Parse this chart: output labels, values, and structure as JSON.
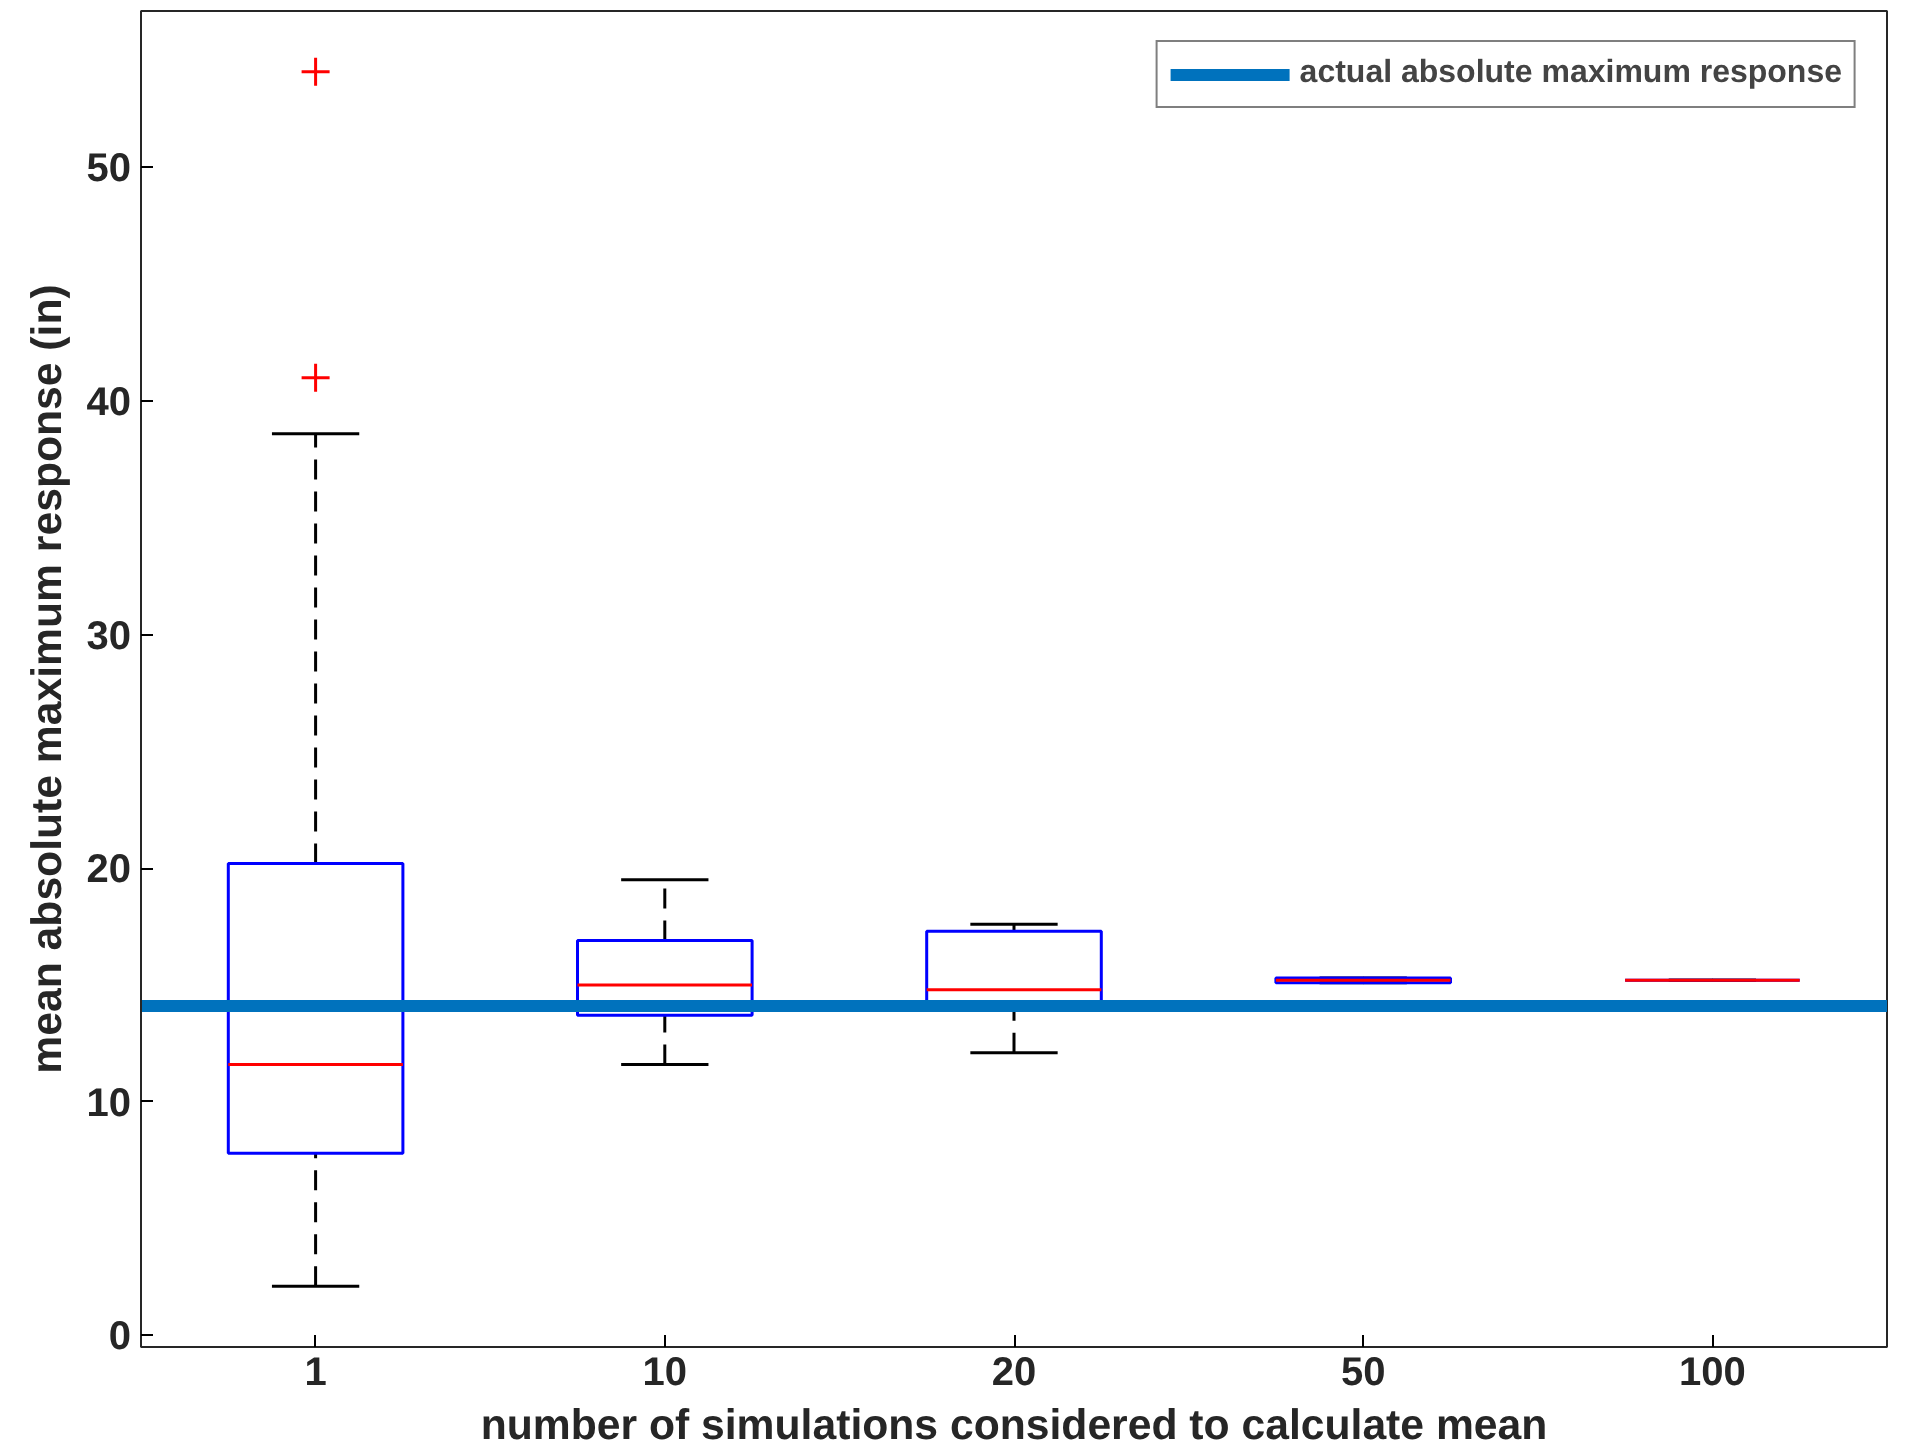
{
  "chart_data": {
    "type": "box",
    "xlabel": "number of simulations considered to calculate mean",
    "ylabel": "mean absolute maximum response (in)",
    "categories": [
      "1",
      "10",
      "20",
      "50",
      "100"
    ],
    "boxes": [
      {
        "low": 2.1,
        "q1": 7.8,
        "median": 11.6,
        "q3": 20.2,
        "high": 38.6,
        "outliers": [
          41.0,
          54.1
        ]
      },
      {
        "low": 11.6,
        "q1": 13.7,
        "median": 15.0,
        "q3": 16.9,
        "high": 19.5
      },
      {
        "low": 12.1,
        "q1": 14.0,
        "median": 14.8,
        "q3": 17.3,
        "high": 17.6
      },
      {
        "low": 15.1,
        "q1": 15.1,
        "median": 15.2,
        "q3": 15.3,
        "high": 15.3
      },
      {
        "low": 15.2,
        "q1": 15.2,
        "median": 15.2,
        "q3": 15.2,
        "high": 15.2
      }
    ],
    "ylim": [
      -0.5,
      56.7
    ],
    "yticks": [
      0,
      10,
      20,
      30,
      40,
      50
    ],
    "ref_lines": [
      {
        "axis": "y",
        "value": 14.1,
        "label": "actual absolute maximum response",
        "color": "#0072bd"
      }
    ],
    "legend": "top right",
    "marker": "cross"
  }
}
